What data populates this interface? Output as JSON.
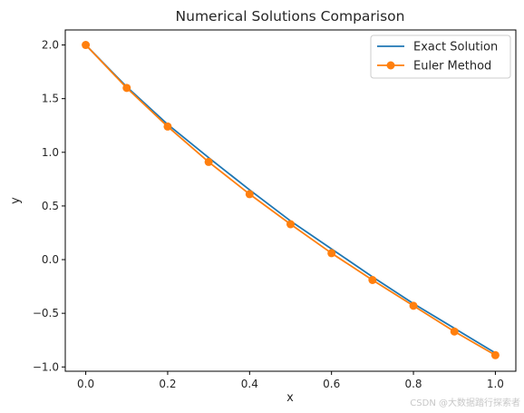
{
  "chart_data": {
    "type": "line",
    "title": "Numerical Solutions Comparison",
    "xlabel": "x",
    "ylabel": "y",
    "xlim": [
      -0.05,
      1.05
    ],
    "ylim": [
      -1.04,
      2.14
    ],
    "x_ticks": [
      0.0,
      0.2,
      0.4,
      0.6,
      0.8,
      1.0
    ],
    "x_tick_labels": [
      "0.0",
      "0.2",
      "0.4",
      "0.6",
      "0.8",
      "1.0"
    ],
    "y_ticks": [
      -1.0,
      -0.5,
      0.0,
      0.5,
      1.0,
      1.5,
      2.0
    ],
    "y_tick_labels": [
      "−1.0",
      "−0.5",
      "0.0",
      "0.5",
      "1.0",
      "1.5",
      "2.0"
    ],
    "grid": false,
    "legend_position": "top-right",
    "series": [
      {
        "name": "Exact Solution",
        "color": "#1f77b4",
        "marker": "none",
        "x": [
          0.0,
          0.1,
          0.2,
          0.3,
          0.4,
          0.5,
          0.6,
          0.7,
          0.8,
          0.9,
          1.0
        ],
        "y": [
          2.0,
          1.61,
          1.26,
          0.95,
          0.65,
          0.36,
          0.1,
          -0.16,
          -0.41,
          -0.64,
          -0.87
        ]
      },
      {
        "name": "Euler Method",
        "color": "#ff7f0e",
        "marker": "circle",
        "x": [
          0.0,
          0.1,
          0.2,
          0.3,
          0.4,
          0.5,
          0.6,
          0.7,
          0.8,
          0.9,
          1.0
        ],
        "y": [
          2.0,
          1.6,
          1.24,
          0.91,
          0.61,
          0.33,
          0.06,
          -0.19,
          -0.43,
          -0.67,
          -0.89
        ]
      }
    ]
  },
  "watermark": "CSDN @大数据踏行探索者"
}
